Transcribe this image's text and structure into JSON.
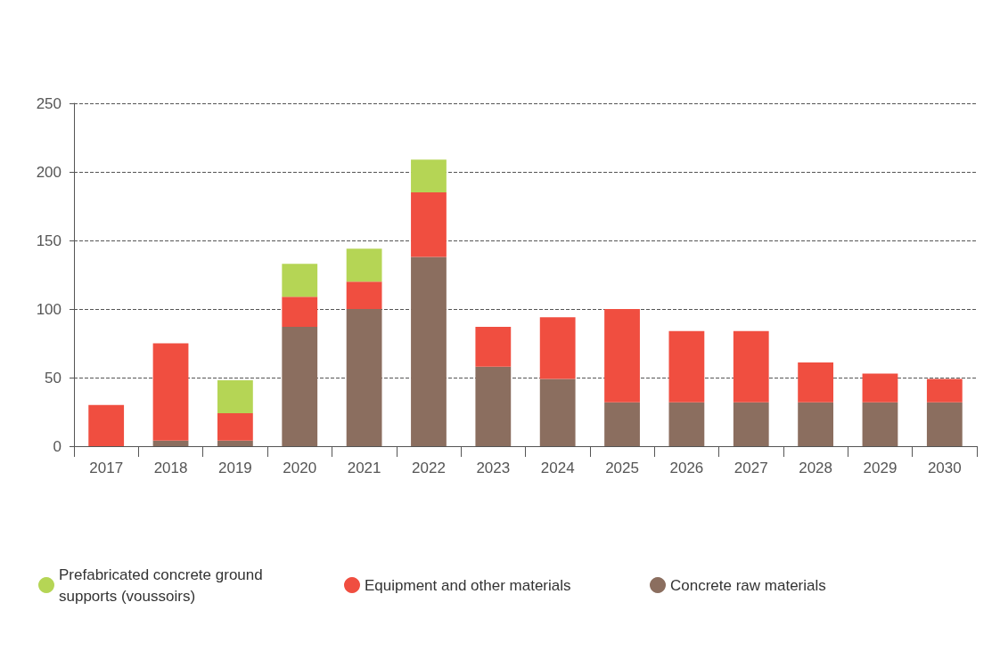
{
  "chart_data": {
    "type": "bar",
    "stacked": true,
    "categories": [
      "2017",
      "2018",
      "2019",
      "2020",
      "2021",
      "2022",
      "2023",
      "2024",
      "2025",
      "2026",
      "2027",
      "2028",
      "2029",
      "2030"
    ],
    "series": [
      {
        "name": "Concrete raw materials",
        "color": "#8b6e5f",
        "values": [
          0,
          4,
          4,
          87,
          100,
          138,
          58,
          49,
          32,
          32,
          32,
          32,
          32,
          32
        ]
      },
      {
        "name": "Equipment and other materials",
        "color": "#f04e40",
        "values": [
          30,
          71,
          20,
          22,
          20,
          47,
          29,
          45,
          68,
          52,
          52,
          29,
          21,
          17
        ]
      },
      {
        "name": "Prefabricated concrete ground supports (voussoirs)",
        "color": "#b5d555",
        "values": [
          0,
          0,
          24,
          24,
          24,
          24,
          0,
          0,
          0,
          0,
          0,
          0,
          0,
          0
        ]
      }
    ],
    "ylim": [
      0,
      250
    ],
    "yticks": [
      0,
      50,
      100,
      150,
      200,
      250
    ],
    "grid": "y",
    "legend": "bottom"
  }
}
